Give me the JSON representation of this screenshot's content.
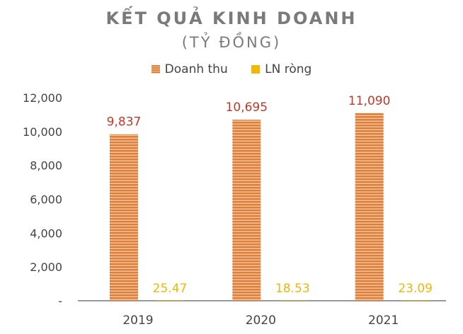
{
  "title": "KẾT QUẢ KINH DOANH",
  "subtitle": "(TỶ ĐỒNG)",
  "legend": {
    "revenue": "Doanh thu",
    "net_profit": "LN ròng"
  },
  "colors": {
    "revenue": "#e07e3c",
    "revenue_stripe": "#f6c9a0",
    "net_profit": "#f2b705",
    "revenue_label": "#c0392b",
    "net_profit_label": "#f2b705",
    "axis": "#999999",
    "text": "#444444"
  },
  "chart_data": {
    "type": "bar",
    "categories": [
      "2019",
      "2020",
      "2021"
    ],
    "series": [
      {
        "name": "Doanh thu",
        "values": [
          9837,
          10695,
          11090
        ],
        "labels": [
          "9,837",
          "10,695",
          "11,090"
        ]
      },
      {
        "name": "LN ròng",
        "values": [
          25.47,
          18.53,
          23.09
        ],
        "labels": [
          "25.47",
          "18.53",
          "23.09"
        ]
      }
    ],
    "yticks": [
      "-",
      "2,000",
      "4,000",
      "6,000",
      "8,000",
      "10,000",
      "12,000"
    ],
    "ylim": [
      0,
      12000
    ],
    "grid": false,
    "legend_position": "top"
  }
}
